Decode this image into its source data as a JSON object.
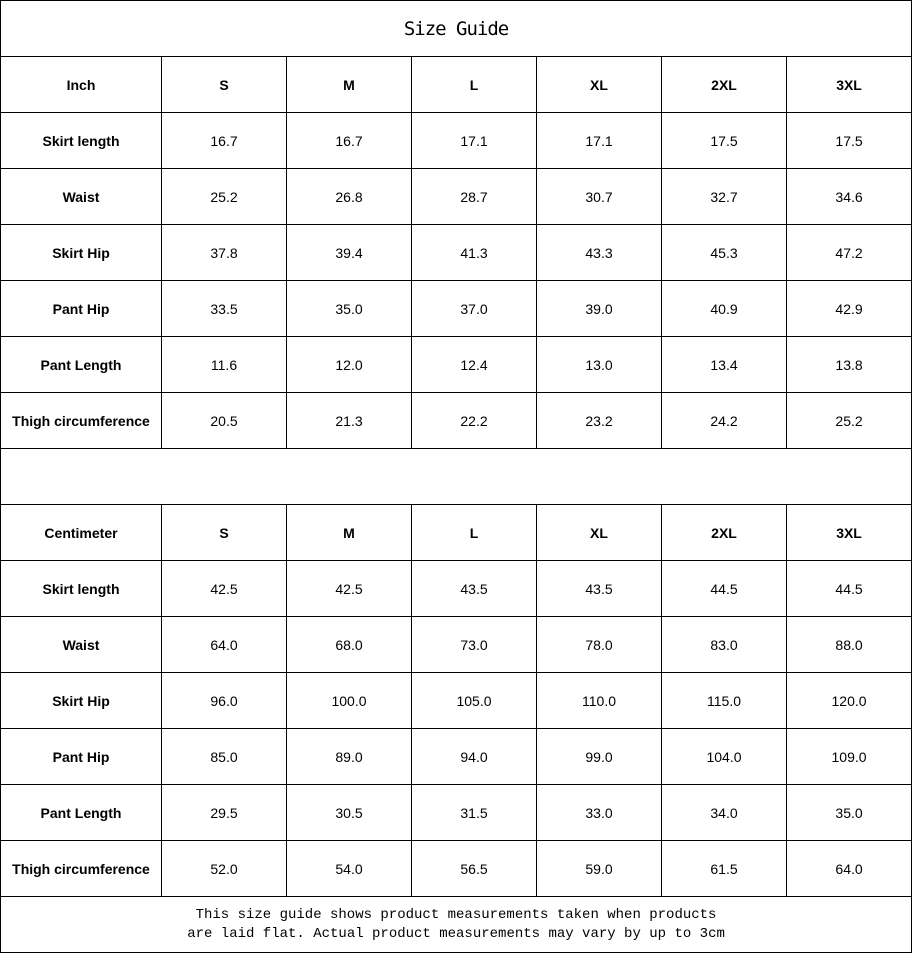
{
  "title": "Size Guide",
  "sizes": [
    "S",
    "M",
    "L",
    "XL",
    "2XL",
    "3XL"
  ],
  "tables": [
    {
      "unit": "Inch",
      "rows": [
        {
          "label": "Skirt length",
          "values": [
            "16.7",
            "16.7",
            "17.1",
            "17.1",
            "17.5",
            "17.5"
          ]
        },
        {
          "label": "Waist",
          "values": [
            "25.2",
            "26.8",
            "28.7",
            "30.7",
            "32.7",
            "34.6"
          ]
        },
        {
          "label": "Skirt Hip",
          "values": [
            "37.8",
            "39.4",
            "41.3",
            "43.3",
            "45.3",
            "47.2"
          ]
        },
        {
          "label": "Pant Hip",
          "values": [
            "33.5",
            "35.0",
            "37.0",
            "39.0",
            "40.9",
            "42.9"
          ]
        },
        {
          "label": "Pant Length",
          "values": [
            "11.6",
            "12.0",
            "12.4",
            "13.0",
            "13.4",
            "13.8"
          ]
        },
        {
          "label": "Thigh circumference",
          "values": [
            "20.5",
            "21.3",
            "22.2",
            "23.2",
            "24.2",
            "25.2"
          ]
        }
      ]
    },
    {
      "unit": "Centimeter",
      "rows": [
        {
          "label": "Skirt length",
          "values": [
            "42.5",
            "42.5",
            "43.5",
            "43.5",
            "44.5",
            "44.5"
          ]
        },
        {
          "label": "Waist",
          "values": [
            "64.0",
            "68.0",
            "73.0",
            "78.0",
            "83.0",
            "88.0"
          ]
        },
        {
          "label": "Skirt Hip",
          "values": [
            "96.0",
            "100.0",
            "105.0",
            "110.0",
            "115.0",
            "120.0"
          ]
        },
        {
          "label": "Pant Hip",
          "values": [
            "85.0",
            "89.0",
            "94.0",
            "99.0",
            "104.0",
            "109.0"
          ]
        },
        {
          "label": "Pant Length",
          "values": [
            "29.5",
            "30.5",
            "31.5",
            "33.0",
            "34.0",
            "35.0"
          ]
        },
        {
          "label": "Thigh circumference",
          "values": [
            "52.0",
            "54.0",
            "56.5",
            "59.0",
            "61.5",
            "64.0"
          ]
        }
      ]
    }
  ],
  "note": {
    "line1": "This size guide shows product measurements taken when products",
    "line2": "are laid flat. Actual product measurements may vary by up to 3cm"
  }
}
